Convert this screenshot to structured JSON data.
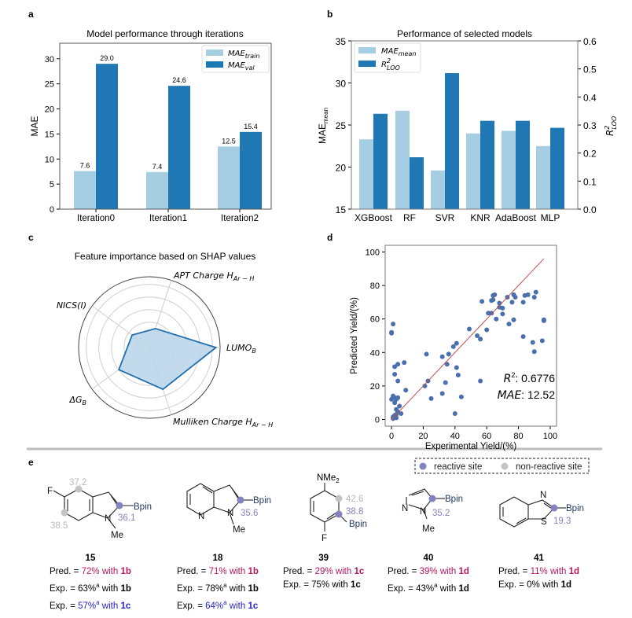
{
  "panel_labels": {
    "a": "a",
    "b": "b",
    "c": "c",
    "d": "d",
    "e": "e"
  },
  "colors": {
    "light": "#a6cee3",
    "dark": "#1f78b4",
    "scatter": "#4a6fad",
    "fit": "#c0504d",
    "radar_fill": "#bcd5ea",
    "radar_line": "#1f6fad",
    "reactive": "#8383c2",
    "nonreactive": "#c4c4c4",
    "pred": "#b5165e",
    "blue": "#2424c8",
    "bpin": "#1f3864"
  },
  "chart_data": [
    {
      "type": "bar",
      "title": "Model performance through iterations",
      "xlabel": "",
      "ylabel": "MAE",
      "categories": [
        "Iteration0",
        "Iteration1",
        "Iteration2"
      ],
      "series": [
        {
          "name": "MAE",
          "sub": "train",
          "values": [
            7.6,
            7.4,
            12.5
          ],
          "labels": [
            "7.6",
            "7.4",
            "12.5"
          ]
        },
        {
          "name": "MAE",
          "sub": "val",
          "values": [
            29.0,
            24.6,
            15.4
          ],
          "labels": [
            "29.0",
            "24.6",
            "15.4"
          ]
        }
      ],
      "ylim": [
        0,
        33.1
      ],
      "yticks": [
        "0",
        "5",
        "10",
        "15",
        "20",
        "25",
        "30"
      ],
      "legend": "top-right"
    },
    {
      "type": "bar",
      "title": "Performance of selected models",
      "ylabel": {
        "main": "MAE",
        "sub": "mean"
      },
      "ylabel_right": {
        "main": "R",
        "sup": "2",
        "sub": "LOO"
      },
      "categories": [
        "XGBoost",
        "RF",
        "SVR",
        "KNR",
        "AdaBoost",
        "MLP"
      ],
      "series": [
        {
          "name": "MAE",
          "sub": "mean",
          "axis": "left",
          "values": [
            23.3,
            26.7,
            19.6,
            24.0,
            24.3,
            22.5
          ]
        },
        {
          "name": "R",
          "sup": "2",
          "sub": "LOO",
          "axis": "right",
          "values": [
            0.34,
            0.185,
            0.485,
            0.315,
            0.315,
            0.29
          ]
        }
      ],
      "ylim": [
        15,
        35
      ],
      "ylim_right": [
        0,
        0.6
      ],
      "yticks": [
        "15",
        "20",
        "25",
        "30",
        "35"
      ],
      "yticks_right": [
        "0.0",
        "0.1",
        "0.2",
        "0.3",
        "0.4",
        "0.5",
        "0.6"
      ],
      "legend": "top-left"
    },
    {
      "type": "radar",
      "title": "Feature importance based on SHAP values",
      "axes": [
        {
          "label": "LUMO",
          "sub": "B",
          "value": 0.97
        },
        {
          "label": "APT Charge H",
          "sub": "Ar − H",
          "value": 0.29
        },
        {
          "label": "NICS(I)",
          "sub": "",
          "value": 0.31
        },
        {
          "label": "ΔG",
          "sub": "B",
          "value": 0.55
        },
        {
          "label": "Mulliken Charge H",
          "sub": "Ar − H",
          "value": 0.64
        }
      ],
      "rmax": 1
    },
    {
      "type": "scatter",
      "xlabel": "Experimental Yield/(%)",
      "ylabel": "Predicted Yield/(%)",
      "xlim": [
        -4,
        104
      ],
      "ylim": [
        -4,
        104
      ],
      "xticks": [
        "0",
        "20",
        "40",
        "60",
        "80",
        "100"
      ],
      "yticks": [
        "0",
        "20",
        "40",
        "60",
        "80",
        "100"
      ],
      "annotations": {
        "r2_label": "R",
        "r2_value": ": 0.6776",
        "mae_label": "MAE",
        "mae_value": ": 12.52"
      },
      "fit_line": [
        [
          0,
          0
        ],
        [
          96,
          96
        ]
      ],
      "points": [
        [
          0,
          52
        ],
        [
          0,
          51.5
        ],
        [
          1,
          57
        ],
        [
          2,
          31.5
        ],
        [
          2,
          27
        ],
        [
          4,
          33
        ],
        [
          8,
          34
        ],
        [
          4,
          23
        ],
        [
          9,
          17.5
        ],
        [
          0,
          12
        ],
        [
          1,
          14
        ],
        [
          2,
          13
        ],
        [
          4,
          13
        ],
        [
          3,
          12
        ],
        [
          2,
          10
        ],
        [
          5,
          8
        ],
        [
          3,
          6
        ],
        [
          4,
          4.5
        ],
        [
          6,
          3.5
        ],
        [
          1,
          1.5
        ],
        [
          2,
          2.5
        ],
        [
          3,
          1
        ],
        [
          1,
          0.5
        ],
        [
          3,
          3
        ],
        [
          22,
          39
        ],
        [
          21,
          20
        ],
        [
          23,
          23
        ],
        [
          25,
          12.5
        ],
        [
          32,
          37.5
        ],
        [
          32,
          15.5
        ],
        [
          34,
          22
        ],
        [
          35,
          33
        ],
        [
          36,
          39
        ],
        [
          39,
          43.5
        ],
        [
          41,
          45.5
        ],
        [
          41,
          31
        ],
        [
          42,
          26.5
        ],
        [
          44,
          13.5
        ],
        [
          40,
          3.5
        ],
        [
          49,
          54
        ],
        [
          54,
          50
        ],
        [
          56,
          48
        ],
        [
          56,
          23
        ],
        [
          57,
          70.5
        ],
        [
          60,
          53.5
        ],
        [
          61,
          63.5
        ],
        [
          63,
          63.5
        ],
        [
          63,
          71
        ],
        [
          64,
          71.5
        ],
        [
          64,
          74
        ],
        [
          65,
          74.5
        ],
        [
          66,
          60
        ],
        [
          68,
          69.5
        ],
        [
          68,
          67
        ],
        [
          70,
          66.5
        ],
        [
          70,
          63
        ],
        [
          73,
          73
        ],
        [
          74,
          57
        ],
        [
          76,
          70
        ],
        [
          77,
          74.5
        ],
        [
          77,
          59.5
        ],
        [
          78,
          73
        ],
        [
          83,
          70
        ],
        [
          83,
          49.5
        ],
        [
          84,
          74
        ],
        [
          86,
          74.5
        ],
        [
          89,
          46
        ],
        [
          90,
          73
        ],
        [
          90,
          40.5
        ],
        [
          91,
          76
        ],
        [
          95,
          47
        ],
        [
          96,
          59.5
        ],
        [
          96,
          59
        ]
      ]
    }
  ],
  "panel_e": {
    "legend": {
      "reactive": "reactive site",
      "nonreactive": "non-reactive site"
    },
    "structures": {
      "s15": {
        "F": "F",
        "N": "N",
        "Me": "Me",
        "Bpin": "Bpin",
        "v1": "37.2",
        "v2": "38.5",
        "v3": "36.1"
      },
      "s18": {
        "N1": "N",
        "N2": "N",
        "Me": "Me",
        "Bpin": "Bpin",
        "v1": "35.6"
      },
      "s39": {
        "NMe2": "NMe",
        "sub": "2",
        "F": "F",
        "Bpin": "Bpin",
        "v1": "42.6",
        "v2": "38.8"
      },
      "s40": {
        "N1": "N",
        "N2": "N",
        "Me": "Me",
        "Bpin": "Bpin",
        "v1": "35.2"
      },
      "s41": {
        "N": "N",
        "S": "S",
        "Bpin": "Bpin",
        "v1": "19.3"
      }
    },
    "compounds": [
      {
        "id": "15",
        "lines": [
          {
            "label": "Pred. = ",
            "value": "72%",
            "sup": "",
            "with": " with ",
            "reagent": "1b",
            "color": "pred"
          },
          {
            "label": "Exp. = ",
            "value": "63%",
            "sup": "a",
            "with": "  with ",
            "reagent": "1b",
            "color": ""
          },
          {
            "label": "Exp. = ",
            "value": "57%",
            "sup": "a",
            "with": " with ",
            "reagent": "1c",
            "color": "blue"
          }
        ]
      },
      {
        "id": "18",
        "lines": [
          {
            "label": "Pred. = ",
            "value": "71%",
            "sup": "",
            "with": " with ",
            "reagent": "1b",
            "color": "pred"
          },
          {
            "label": "Exp. = ",
            "value": "78%",
            "sup": "a",
            "with": " with ",
            "reagent": "1b",
            "color": ""
          },
          {
            "label": "Exp. = ",
            "value": "64%",
            "sup": "a",
            "with": " with ",
            "reagent": "1c",
            "color": "blue"
          }
        ]
      },
      {
        "id": "39",
        "lines": [
          {
            "label": "Pred. = ",
            "value": "29%",
            "sup": "",
            "with": " with ",
            "reagent": "1c",
            "color": "pred"
          },
          {
            "label": "Exp. = ",
            "value": "75%",
            "sup": "",
            "with": " with ",
            "reagent": "1c",
            "color": ""
          }
        ]
      },
      {
        "id": "40",
        "lines": [
          {
            "label": "Pred. = ",
            "value": "39%",
            "sup": "",
            "with": " with ",
            "reagent": "1d",
            "color": "pred"
          },
          {
            "label": "Exp. = ",
            "value": "43%",
            "sup": "a",
            "with": " with ",
            "reagent": "1d",
            "color": ""
          }
        ]
      },
      {
        "id": "41",
        "lines": [
          {
            "label": "Pred. = ",
            "value": "11%",
            "sup": "",
            "with": " with ",
            "reagent": "1d",
            "color": "pred"
          },
          {
            "label": "Exp. = ",
            "value": "0%",
            "sup": "",
            "with": " with ",
            "reagent": "1d",
            "color": ""
          }
        ]
      }
    ]
  }
}
